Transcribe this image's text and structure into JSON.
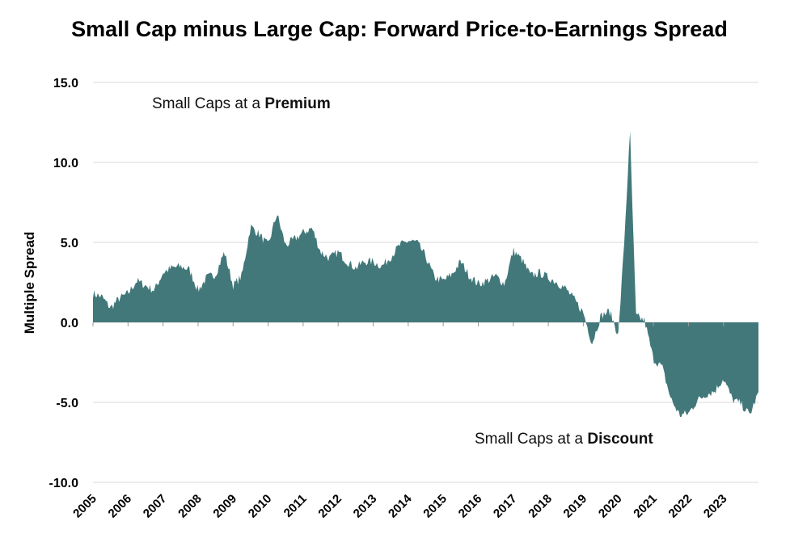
{
  "chart_data": {
    "type": "area",
    "title": "Small Cap minus Large Cap: Forward Price-to-Earnings Spread",
    "ylabel": "Multiple Spread",
    "xlabel": "",
    "ylim": [
      -10,
      15
    ],
    "xlim": [
      "2005-01-01",
      "2024-01-01"
    ],
    "y_ticks": [
      15,
      10,
      5,
      0,
      -5,
      -10
    ],
    "y_tick_labels": [
      "15.0",
      "10.0",
      "5.0",
      "0.0",
      "-5.0",
      "-10.0"
    ],
    "x_tick_labels": [
      "2005",
      "2006",
      "2007",
      "2008",
      "2009",
      "2010",
      "2011",
      "2012",
      "2013",
      "2014",
      "2015",
      "2016",
      "2017",
      "2018",
      "2019",
      "2020",
      "2021",
      "2022",
      "2023"
    ],
    "grid": true,
    "colors": {
      "area": "#42787a"
    },
    "annotations": [
      {
        "prefix": "Small Caps at a ",
        "bold": "Premium"
      },
      {
        "prefix": "Small Caps at a ",
        "bold": "Discount"
      }
    ],
    "series": [
      {
        "x": [
          "2005-01",
          "2005-04",
          "2005-07",
          "2005-10",
          "2006-01",
          "2006-04",
          "2006-07",
          "2006-10",
          "2007-01",
          "2007-04",
          "2007-07",
          "2007-10",
          "2008-01",
          "2008-04",
          "2008-07",
          "2008-10",
          "2009-01",
          "2009-04",
          "2009-07",
          "2009-10",
          "2010-01",
          "2010-04",
          "2010-07",
          "2010-10",
          "2011-01",
          "2011-04",
          "2011-07",
          "2011-10",
          "2012-01",
          "2012-04",
          "2012-07",
          "2012-10",
          "2013-01",
          "2013-04",
          "2013-07",
          "2013-10",
          "2014-01",
          "2014-04",
          "2014-07",
          "2014-10",
          "2015-01",
          "2015-04",
          "2015-07",
          "2015-10",
          "2016-01",
          "2016-04",
          "2016-07",
          "2016-10",
          "2017-01",
          "2017-04",
          "2017-07",
          "2017-10",
          "2018-01",
          "2018-04",
          "2018-07",
          "2018-10",
          "2019-01",
          "2019-04",
          "2019-07",
          "2019-10",
          "2020-01",
          "2020-03",
          "2020-05",
          "2020-07",
          "2020-10",
          "2021-01",
          "2021-04",
          "2021-07",
          "2021-10",
          "2022-01",
          "2022-04",
          "2022-07",
          "2022-10",
          "2023-01",
          "2023-04",
          "2023-07",
          "2023-10",
          "2024-01"
        ],
        "values": [
          1.8,
          1.6,
          0.9,
          1.5,
          1.8,
          2.6,
          2.3,
          2.0,
          3.1,
          3.4,
          3.5,
          3.3,
          2.0,
          2.8,
          3.0,
          4.4,
          2.3,
          2.9,
          6.0,
          5.5,
          4.8,
          6.8,
          4.8,
          5.2,
          5.6,
          5.9,
          4.4,
          4.0,
          4.4,
          3.8,
          3.4,
          3.8,
          3.8,
          3.5,
          4.1,
          4.8,
          5.1,
          5.0,
          4.1,
          2.8,
          2.6,
          3.0,
          3.8,
          2.9,
          2.4,
          2.6,
          2.9,
          2.4,
          4.5,
          3.9,
          2.9,
          3.1,
          2.8,
          2.5,
          2.1,
          1.4,
          0.6,
          -1.3,
          0.4,
          0.7,
          -0.8,
          5.0,
          11.9,
          0.4,
          0.1,
          -2.3,
          -2.8,
          -4.8,
          -5.8,
          -5.7,
          -4.9,
          -4.5,
          -4.3,
          -3.5,
          -4.8,
          -5.1,
          -5.8,
          -4.4
        ]
      }
    ]
  }
}
